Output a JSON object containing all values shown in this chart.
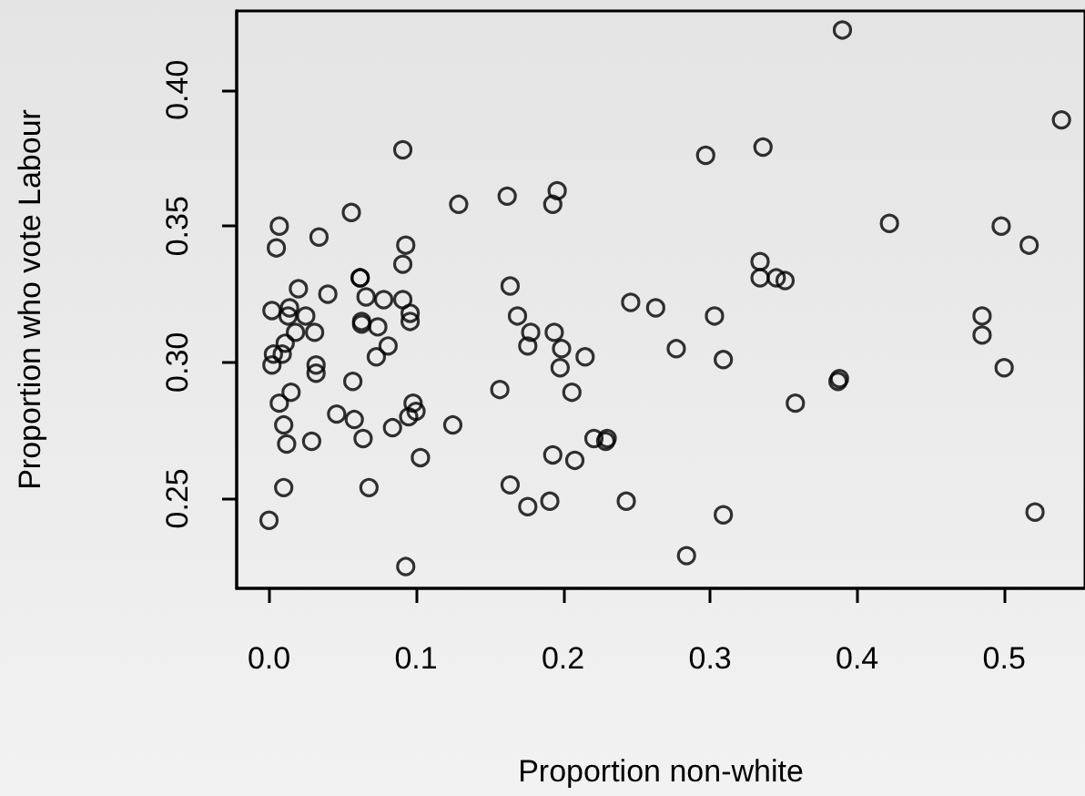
{
  "chart_data": {
    "type": "scatter",
    "xlabel": "Proportion non-white",
    "ylabel": "Proportion who vote Labour",
    "xlim": [
      -0.022,
      0.555
    ],
    "ylim": [
      0.217,
      0.429
    ],
    "xticks": [
      {
        "value": 0,
        "label": "0.0"
      },
      0.1,
      0.2,
      0.3,
      0.4,
      0.5
    ],
    "yticks": [
      0.25,
      {
        "value": 0.3,
        "label": "0.30"
      },
      0.35,
      {
        "value": 0.4,
        "label": "0.40"
      }
    ],
    "grid": false,
    "marker": "circle",
    "series": [
      {
        "color": "#000000",
        "x": [
          0.091,
          0.007,
          0.005,
          0.034,
          0.056,
          0.093,
          0.091,
          0.129,
          0.162,
          0.196,
          0.193,
          0.164,
          0.02,
          0.04,
          0.062,
          0.062,
          0.066,
          0.078,
          0.091,
          0.246,
          0.263,
          0.002,
          0.014,
          0.013,
          0.025,
          0.018,
          0.031,
          0.011,
          0.003,
          0.009,
          0.002,
          0.032,
          0.032,
          0.063,
          0.063,
          0.074,
          0.096,
          0.096,
          0.081,
          0.073,
          0.057,
          0.015,
          0.007,
          0.01,
          0.012,
          0.029,
          0.046,
          0.058,
          0.064,
          0.084,
          0.098,
          0.1,
          0.095,
          0.125,
          0.103,
          0.01,
          0.068,
          0.0,
          0.093,
          0.169,
          0.178,
          0.194,
          0.176,
          0.199,
          0.215,
          0.198,
          0.157,
          0.206,
          0.221,
          0.23,
          0.229,
          0.193,
          0.208,
          0.164,
          0.176,
          0.191,
          0.243,
          0.39,
          0.539,
          0.297,
          0.336,
          0.422,
          0.498,
          0.517,
          0.334,
          0.334,
          0.345,
          0.351,
          0.303,
          0.277,
          0.309,
          0.388,
          0.387,
          0.358,
          0.485,
          0.485,
          0.5,
          0.309,
          0.284,
          0.521
        ],
        "values": [
          0.378,
          0.35,
          0.342,
          0.346,
          0.355,
          0.343,
          0.336,
          0.358,
          0.361,
          0.363,
          0.358,
          0.328,
          0.327,
          0.325,
          0.331,
          0.331,
          0.324,
          0.323,
          0.323,
          0.322,
          0.32,
          0.319,
          0.32,
          0.317,
          0.317,
          0.311,
          0.311,
          0.307,
          0.303,
          0.303,
          0.299,
          0.299,
          0.296,
          0.315,
          0.314,
          0.313,
          0.318,
          0.315,
          0.306,
          0.302,
          0.293,
          0.289,
          0.285,
          0.277,
          0.27,
          0.271,
          0.281,
          0.279,
          0.272,
          0.276,
          0.285,
          0.282,
          0.28,
          0.277,
          0.265,
          0.254,
          0.254,
          0.242,
          0.225,
          0.317,
          0.311,
          0.311,
          0.306,
          0.305,
          0.302,
          0.298,
          0.29,
          0.289,
          0.272,
          0.272,
          0.271,
          0.266,
          0.264,
          0.255,
          0.247,
          0.249,
          0.249,
          0.422,
          0.389,
          0.376,
          0.379,
          0.351,
          0.35,
          0.343,
          0.337,
          0.331,
          0.331,
          0.33,
          0.317,
          0.305,
          0.301,
          0.294,
          0.293,
          0.285,
          0.317,
          0.31,
          0.298,
          0.244,
          0.229,
          0.245
        ]
      }
    ]
  }
}
